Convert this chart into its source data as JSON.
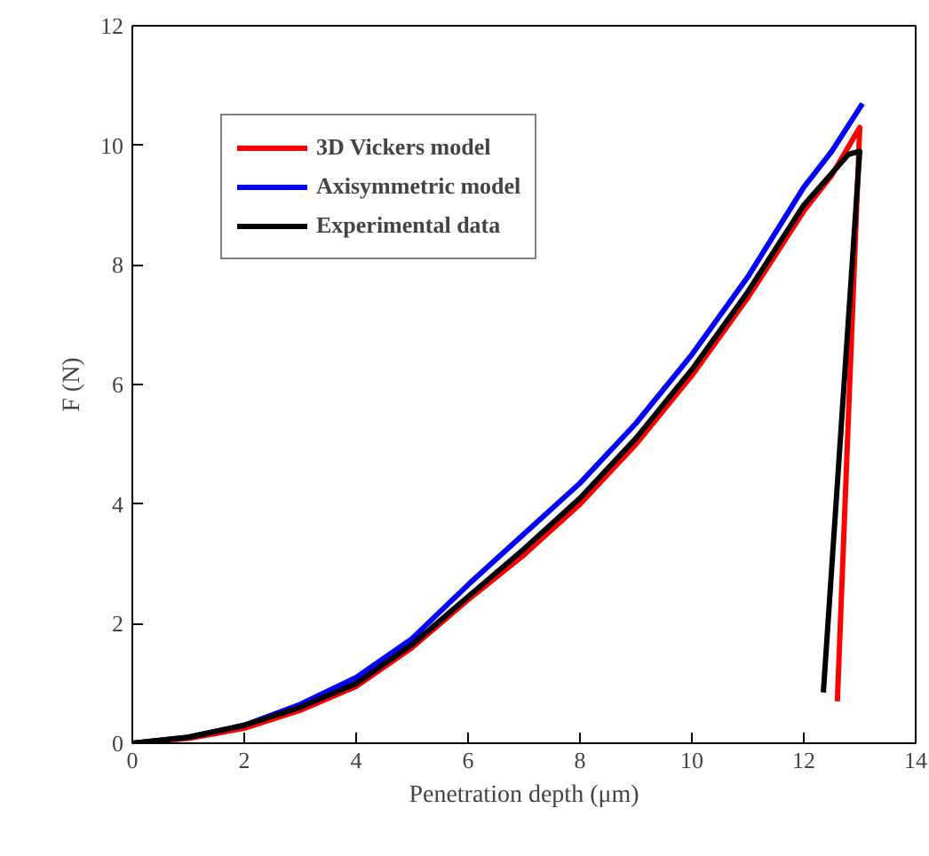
{
  "chart_data": {
    "type": "line",
    "xlabel": "Penetration depth (μm)",
    "ylabel": "F (N)",
    "xlim": [
      0,
      14
    ],
    "ylim": [
      0,
      12
    ],
    "xticks": [
      0,
      2,
      4,
      6,
      8,
      10,
      12,
      14
    ],
    "yticks": [
      0,
      2,
      4,
      6,
      8,
      10,
      12
    ],
    "grid": false,
    "legend": "top left",
    "marker": "none",
    "line_style": "solid",
    "series": [
      {
        "name": "3D Vickers model",
        "color": "#ff0000",
        "x": [
          0,
          1,
          2,
          3,
          4,
          5,
          6,
          7,
          8,
          9,
          10,
          11,
          12,
          12.5,
          13.0,
          12.6
        ],
        "values": [
          0,
          0.08,
          0.25,
          0.55,
          0.95,
          1.6,
          2.4,
          3.15,
          4.0,
          5.0,
          6.15,
          7.45,
          8.9,
          9.5,
          10.3,
          0.7
        ]
      },
      {
        "name": "Axisymmetric model",
        "color": "#0000ff",
        "x": [
          0,
          1,
          2,
          3,
          4,
          5,
          6,
          7,
          8,
          9,
          10,
          11,
          12,
          12.5,
          13.05
        ],
        "values": [
          0,
          0.1,
          0.3,
          0.65,
          1.1,
          1.75,
          2.65,
          3.5,
          4.35,
          5.35,
          6.5,
          7.8,
          9.3,
          9.9,
          10.7
        ]
      },
      {
        "name": "Experimental data",
        "color": "#000000",
        "x": [
          0,
          1,
          2,
          3,
          4,
          5,
          6,
          7,
          8,
          9,
          10,
          11,
          12,
          12.8,
          13.0,
          12.35
        ],
        "values": [
          0,
          0.1,
          0.3,
          0.6,
          1.0,
          1.65,
          2.45,
          3.25,
          4.1,
          5.1,
          6.25,
          7.55,
          9.0,
          9.85,
          9.9,
          0.85
        ]
      }
    ]
  }
}
